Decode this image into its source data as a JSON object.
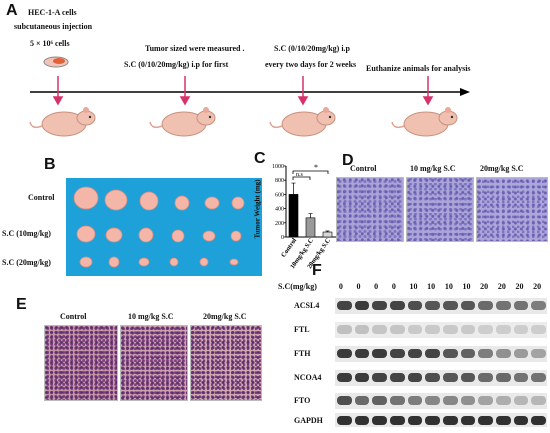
{
  "panelA": {
    "letter": "A",
    "step1_title": "HEC-1-A cells",
    "step1_sub": "subcutaneous injection",
    "step1_cells": "5 × 10⁶ cells",
    "step2_title": "Tumor sized were measured .",
    "step2_sub": "S.C (0/10/20mg/kg) i.p for first",
    "step3_title": "S.C (0/10/20mg/kg) i.p",
    "step3_sub": "every two days for 2 weeks",
    "step4_title": "Euthanize animals for analysis"
  },
  "panelB": {
    "letter": "B",
    "rows": [
      "Control",
      "S.C (10mg/kg)",
      "S.C (20mg/kg)"
    ]
  },
  "panelC": {
    "letter": "C",
    "ylabel": "Tumor Weight (mg)",
    "yticks": [
      "1000",
      "800",
      "600",
      "400",
      "200",
      "0"
    ],
    "ns_label": "n.s",
    "sig_label": "*",
    "xticks": [
      "Control",
      "10mg/kg S.C",
      "20mg/kg S.C"
    ]
  },
  "panelD": {
    "letter": "D",
    "titles": [
      "Control",
      "10 mg/kg S.C",
      "20mg/kg S.C"
    ]
  },
  "panelE": {
    "letter": "E",
    "titles": [
      "Control",
      "10 mg/kg S.C",
      "20mg/kg S.C"
    ]
  },
  "panelF": {
    "letter": "F",
    "header": "S.C(mg/kg)",
    "lanes": [
      "0",
      "0",
      "0",
      "0",
      "10",
      "10",
      "10",
      "10",
      "20",
      "20",
      "20",
      "20"
    ],
    "proteins": [
      "ACSL4",
      "FTL",
      "FTH",
      "NCOA4",
      "FTO",
      "GAPDH"
    ]
  },
  "chart_data": {
    "type": "bar",
    "categories": [
      "Control",
      "10mg/kg S.C",
      "20mg/kg S.C"
    ],
    "values": [
      600,
      270,
      70
    ],
    "errors": [
      160,
      60,
      15
    ],
    "ylabel": "Tumor Weight (mg)",
    "ylim": [
      0,
      1000
    ],
    "colors": [
      "#000000",
      "#9a9a9a",
      "#d8d8d8"
    ]
  }
}
